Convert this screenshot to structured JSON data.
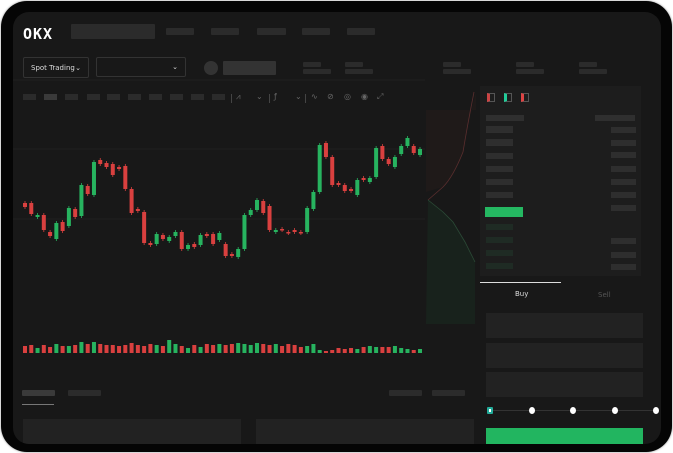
{
  "header": {
    "logo": "OKX"
  },
  "toolbar": {
    "market_select": "Spot Trading",
    "pair_select": "",
    "chevron": "⌄"
  },
  "order_form": {
    "buy_tab": "Buy",
    "sell_tab": "Sell",
    "leverage_stops": 5,
    "slider_value": 0
  },
  "colors": {
    "up": "#27b35f",
    "down": "#d9403f",
    "background": "#181818",
    "button": "#22b560"
  },
  "chart_data": {
    "type": "candlestick",
    "candles": [
      [
        97,
        93
      ],
      [
        97,
        86
      ],
      [
        83,
        85
      ],
      [
        85,
        70
      ],
      [
        68,
        64
      ],
      [
        61,
        77
      ],
      [
        78,
        69
      ],
      [
        74,
        92
      ],
      [
        91,
        83
      ],
      [
        84,
        115
      ],
      [
        114,
        106
      ],
      [
        105,
        138
      ],
      [
        140,
        136
      ],
      [
        137,
        133
      ],
      [
        136,
        125
      ],
      [
        133,
        131
      ],
      [
        134,
        111
      ],
      [
        111,
        87
      ],
      [
        91,
        89
      ],
      [
        88,
        57
      ],
      [
        57,
        55
      ],
      [
        56,
        66
      ],
      [
        65,
        61
      ],
      [
        59,
        63
      ],
      [
        64,
        68
      ],
      [
        68,
        51
      ],
      [
        51,
        55
      ],
      [
        56,
        53
      ],
      [
        55,
        65
      ],
      [
        66,
        64
      ],
      [
        66,
        56
      ],
      [
        60,
        67
      ],
      [
        56,
        44
      ],
      [
        46,
        44
      ],
      [
        43,
        51
      ],
      [
        51,
        85
      ],
      [
        85,
        90
      ],
      [
        90,
        100
      ],
      [
        99,
        87
      ],
      [
        94,
        70
      ],
      [
        68,
        70
      ],
      [
        71,
        70
      ],
      [
        68,
        67
      ],
      [
        70,
        68
      ],
      [
        68,
        67
      ],
      [
        68,
        92
      ],
      [
        91,
        108
      ],
      [
        108,
        155
      ],
      [
        157,
        143
      ],
      [
        143,
        115
      ],
      [
        117,
        115
      ],
      [
        115,
        109
      ],
      [
        111,
        109
      ],
      [
        105,
        120
      ],
      [
        122,
        120
      ],
      [
        118,
        122
      ],
      [
        123,
        152
      ],
      [
        154,
        141
      ],
      [
        141,
        136
      ],
      [
        133,
        143
      ],
      [
        146,
        154
      ],
      [
        154,
        162
      ],
      [
        154,
        147
      ],
      [
        145,
        151
      ]
    ],
    "volume": [
      7,
      8,
      5,
      8,
      6,
      9,
      7,
      7,
      8,
      11,
      9,
      11,
      9,
      8,
      8,
      7,
      8,
      10,
      8,
      7,
      9,
      8,
      7,
      13,
      9,
      7,
      5,
      8,
      6,
      9,
      8,
      9,
      8,
      9,
      10,
      9,
      8,
      10,
      9,
      8,
      9,
      7,
      9,
      8,
      6,
      7,
      9,
      3,
      2,
      3,
      5,
      4,
      5,
      4,
      6,
      7,
      6,
      6,
      6,
      7,
      5,
      4,
      3,
      4
    ]
  }
}
